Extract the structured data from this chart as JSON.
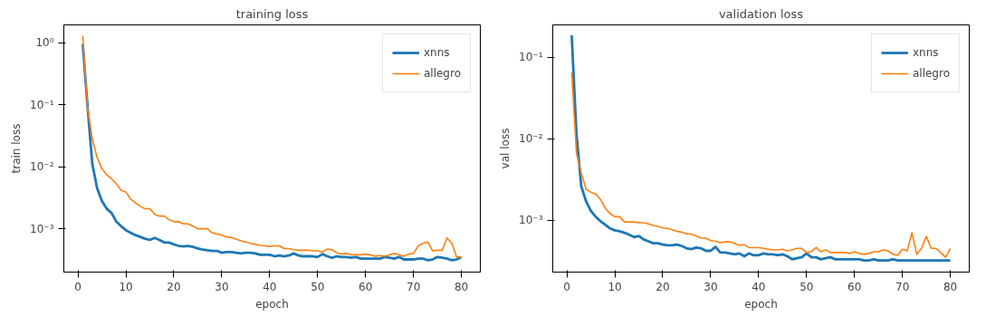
{
  "chart_data": [
    {
      "type": "line",
      "title": "training loss",
      "xlabel": "epoch",
      "ylabel": "train loss",
      "log": "y",
      "grid": false,
      "legend": "top right",
      "x": [
        1,
        2,
        3,
        4,
        5,
        6,
        7,
        8,
        9,
        10,
        11,
        12,
        13,
        14,
        15,
        16,
        17,
        18,
        19,
        20,
        21,
        22,
        23,
        24,
        25,
        26,
        27,
        28,
        29,
        30,
        31,
        32,
        33,
        34,
        35,
        36,
        37,
        38,
        39,
        40,
        41,
        42,
        43,
        44,
        45,
        46,
        47,
        48,
        49,
        50,
        51,
        52,
        53,
        54,
        55,
        56,
        57,
        58,
        59,
        60,
        61,
        62,
        63,
        64,
        65,
        66,
        67,
        68,
        69,
        70,
        71,
        72,
        73,
        74,
        75,
        76,
        77,
        78,
        79,
        80
      ],
      "xlim": [
        -2.95,
        83.95
      ],
      "xticks": [
        0,
        10,
        20,
        30,
        40,
        50,
        60,
        70,
        80
      ],
      "ylim": [
        0.0002,
        1.94
      ],
      "yticks": [
        {
          "value": 0.001,
          "label": "10⁻³"
        },
        {
          "value": 0.01,
          "label": "10⁻²"
        },
        {
          "value": 0.1,
          "label": "10⁻¹"
        },
        {
          "value": 1,
          "label": "10⁰"
        }
      ],
      "series": [
        {
          "name": "xnns",
          "color": "#1f77b4",
          "values": [
            0.95,
            0.093,
            0.011,
            0.0045,
            0.0028,
            0.0021,
            0.0018,
            0.0013,
            0.0011,
            0.00095,
            0.00086,
            0.00079,
            0.00074,
            0.00069,
            0.00066,
            0.00071,
            0.00066,
            0.0006,
            0.0006,
            0.00056,
            0.00053,
            0.00052,
            0.00053,
            0.00051,
            0.00048,
            0.00046,
            0.00045,
            0.00044,
            0.00044,
            0.00041,
            0.00042,
            0.00042,
            0.00041,
            0.0004,
            0.00041,
            0.00041,
            0.0004,
            0.00038,
            0.00038,
            0.00038,
            0.00036,
            0.00037,
            0.00036,
            0.00037,
            0.0004,
            0.00037,
            0.00036,
            0.00036,
            0.00036,
            0.00035,
            0.00039,
            0.00036,
            0.00034,
            0.00036,
            0.00035,
            0.00035,
            0.00034,
            0.00035,
            0.00033,
            0.00033,
            0.00033,
            0.00033,
            0.00033,
            0.00035,
            0.00034,
            0.00033,
            0.00035,
            0.00032,
            0.00032,
            0.00032,
            0.00033,
            0.00033,
            0.00031,
            0.00032,
            0.00035,
            0.00034,
            0.00033,
            0.00031,
            0.00032,
            0.00035
          ]
        },
        {
          "name": "allegro",
          "color": "#ff7f0e",
          "values": [
            1.3,
            0.088,
            0.028,
            0.014,
            0.0093,
            0.0074,
            0.0064,
            0.0053,
            0.0042,
            0.0039,
            0.003,
            0.0026,
            0.0023,
            0.0021,
            0.0021,
            0.0017,
            0.0016,
            0.0016,
            0.0014,
            0.0013,
            0.0013,
            0.0012,
            0.0012,
            0.0011,
            0.001,
            0.001,
            0.001,
            0.00086,
            0.00082,
            0.00079,
            0.00074,
            0.00072,
            0.00068,
            0.00064,
            0.00061,
            0.00058,
            0.00056,
            0.00054,
            0.00053,
            0.00052,
            0.00053,
            0.00053,
            0.00048,
            0.00048,
            0.00046,
            0.00045,
            0.00045,
            0.00045,
            0.00044,
            0.00044,
            0.00042,
            0.00047,
            0.00046,
            0.00041,
            0.00039,
            0.0004,
            0.00038,
            0.00038,
            0.00038,
            0.00039,
            0.00038,
            0.00036,
            0.00037,
            0.00036,
            0.00038,
            0.0004,
            0.00038,
            0.00036,
            0.00039,
            0.0004,
            0.00053,
            0.00058,
            0.00061,
            0.00044,
            0.00045,
            0.00045,
            0.00071,
            0.00058,
            0.00035,
            0.00035
          ]
        }
      ]
    },
    {
      "type": "line",
      "title": "validation loss",
      "xlabel": "epoch",
      "ylabel": "val loss",
      "log": "y",
      "grid": false,
      "legend": "top right",
      "x": [
        1,
        2,
        3,
        4,
        5,
        6,
        7,
        8,
        9,
        10,
        11,
        12,
        13,
        14,
        15,
        16,
        17,
        18,
        19,
        20,
        21,
        22,
        23,
        24,
        25,
        26,
        27,
        28,
        29,
        30,
        31,
        32,
        33,
        34,
        35,
        36,
        37,
        38,
        39,
        40,
        41,
        42,
        43,
        44,
        45,
        46,
        47,
        48,
        49,
        50,
        51,
        52,
        53,
        54,
        55,
        56,
        57,
        58,
        59,
        60,
        61,
        62,
        63,
        64,
        65,
        66,
        67,
        68,
        69,
        70,
        71,
        72,
        73,
        74,
        75,
        76,
        77,
        78,
        79,
        80
      ],
      "xlim": [
        -2.95,
        83.95
      ],
      "xticks": [
        0,
        10,
        20,
        30,
        40,
        50,
        60,
        70,
        80
      ],
      "ylim": [
        0.00023,
        0.25
      ],
      "yticks": [
        {
          "value": 0.001,
          "label": "10⁻³"
        },
        {
          "value": 0.01,
          "label": "10⁻²"
        },
        {
          "value": 0.1,
          "label": "10⁻¹"
        }
      ],
      "series": [
        {
          "name": "xnns",
          "color": "#1f77b4",
          "values": [
            0.186,
            0.0114,
            0.0026,
            0.0017,
            0.0013,
            0.0011,
            0.00097,
            0.00088,
            0.00079,
            0.00075,
            0.00073,
            0.0007,
            0.00066,
            0.00062,
            0.00064,
            0.00058,
            0.00055,
            0.00052,
            0.00052,
            0.0005,
            0.00049,
            0.00049,
            0.0005,
            0.00048,
            0.00045,
            0.00044,
            0.00046,
            0.00045,
            0.00042,
            0.00042,
            0.00047,
            0.0004,
            0.0004,
            0.00039,
            0.00038,
            0.00039,
            0.00036,
            0.00039,
            0.00037,
            0.00037,
            0.00039,
            0.00038,
            0.00038,
            0.00037,
            0.00038,
            0.00036,
            0.00033,
            0.00034,
            0.00035,
            0.00039,
            0.00035,
            0.00035,
            0.00033,
            0.00034,
            0.00035,
            0.00033,
            0.00033,
            0.00033,
            0.00033,
            0.00033,
            0.00033,
            0.00032,
            0.00032,
            0.00033,
            0.00032,
            0.00032,
            0.00032,
            0.00033,
            0.00032,
            0.00032,
            0.00032,
            0.00032,
            0.00032,
            0.00032,
            0.00032,
            0.00032,
            0.00032,
            0.00032,
            0.00032,
            0.00032
          ]
        },
        {
          "name": "allegro",
          "color": "#ff7f0e",
          "values": [
            0.065,
            0.0066,
            0.0038,
            0.0024,
            0.0022,
            0.0021,
            0.0018,
            0.0014,
            0.0012,
            0.0011,
            0.0011,
            0.00095,
            0.00095,
            0.00095,
            0.00093,
            0.00093,
            0.0009,
            0.00086,
            0.00084,
            0.0008,
            0.00079,
            0.00076,
            0.00073,
            0.00071,
            0.00068,
            0.00067,
            0.00064,
            0.0006,
            0.0006,
            0.00056,
            0.00055,
            0.00053,
            0.00054,
            0.00054,
            0.00052,
            0.00049,
            0.0005,
            0.00046,
            0.00046,
            0.00046,
            0.00045,
            0.00044,
            0.00043,
            0.00043,
            0.00044,
            0.00042,
            0.00043,
            0.00045,
            0.00045,
            0.0004,
            0.00041,
            0.00046,
            0.00041,
            0.00043,
            0.0004,
            0.0004,
            0.0004,
            0.0004,
            0.00039,
            0.00041,
            0.00039,
            0.00038,
            0.00039,
            0.00041,
            0.00041,
            0.00043,
            0.00042,
            0.00038,
            0.00037,
            0.00044,
            0.00042,
            0.0007,
            0.00038,
            0.00045,
            0.00063,
            0.00045,
            0.00045,
            0.0004,
            0.00035,
            0.00045
          ]
        }
      ]
    }
  ]
}
